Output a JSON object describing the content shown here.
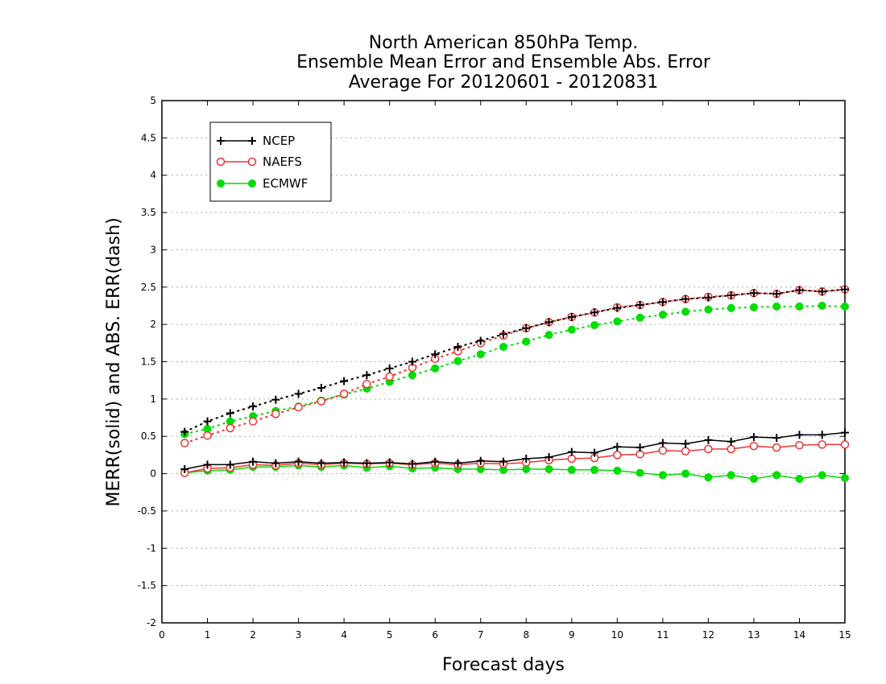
{
  "chart_data": {
    "type": "line",
    "title": [
      "North American 850hPa Temp.",
      "Ensemble Mean Error and Ensemble Abs. Error",
      "Average For 20120601 - 20120831"
    ],
    "xlabel": "Forecast days",
    "ylabel": "MERR(solid) and ABS. ERR(dash)",
    "xlim": [
      0,
      15
    ],
    "ylim": [
      -2,
      5
    ],
    "x_ticks": [
      "0",
      "1",
      "2",
      "3",
      "4",
      "5",
      "6",
      "7",
      "8",
      "9",
      "10",
      "11",
      "12",
      "13",
      "14",
      "15"
    ],
    "y_ticks": [
      "5",
      "4.5",
      "4",
      "3.5",
      "3",
      "2.5",
      "2",
      "1.5",
      "1",
      "0.5",
      "0",
      "-0.5",
      "-1",
      "-1.5",
      "-2"
    ],
    "grid": "horizontal dotted",
    "legend_position": "top-left",
    "x": [
      0.5,
      1,
      1.5,
      2,
      2.5,
      3,
      3.5,
      4,
      4.5,
      5,
      5.5,
      6,
      6.5,
      7,
      7.5,
      8,
      8.5,
      9,
      9.5,
      10,
      10.5,
      11,
      11.5,
      12,
      12.5,
      13,
      13.5,
      14,
      14.5,
      15
    ],
    "series": [
      {
        "name": "NCEP",
        "color": "#000000",
        "marker": "plus",
        "merr": [
          0.06,
          0.12,
          0.12,
          0.16,
          0.14,
          0.16,
          0.14,
          0.15,
          0.14,
          0.15,
          0.13,
          0.16,
          0.14,
          0.17,
          0.16,
          0.2,
          0.22,
          0.29,
          0.28,
          0.36,
          0.35,
          0.41,
          0.4,
          0.45,
          0.43,
          0.49,
          0.48,
          0.52,
          0.52,
          0.55
        ],
        "abs_err": [
          0.56,
          0.7,
          0.81,
          0.9,
          0.99,
          1.07,
          1.15,
          1.24,
          1.32,
          1.41,
          1.5,
          1.6,
          1.7,
          1.78,
          1.87,
          1.95,
          2.03,
          2.1,
          2.16,
          2.22,
          2.26,
          2.3,
          2.34,
          2.36,
          2.39,
          2.42,
          2.41,
          2.46,
          2.44,
          2.47
        ]
      },
      {
        "name": "NAEFS",
        "color": "#ee3333",
        "marker": "open-circle",
        "merr": [
          0.01,
          0.07,
          0.08,
          0.12,
          0.11,
          0.14,
          0.12,
          0.14,
          0.13,
          0.14,
          0.12,
          0.14,
          0.12,
          0.14,
          0.13,
          0.15,
          0.18,
          0.2,
          0.21,
          0.25,
          0.26,
          0.31,
          0.3,
          0.33,
          0.33,
          0.37,
          0.35,
          0.38,
          0.39,
          0.39
        ],
        "abs_err": [
          0.41,
          0.51,
          0.61,
          0.7,
          0.8,
          0.89,
          0.97,
          1.07,
          1.2,
          1.3,
          1.42,
          1.54,
          1.64,
          1.75,
          1.85,
          1.95,
          2.03,
          2.1,
          2.16,
          2.23,
          2.26,
          2.3,
          2.34,
          2.37,
          2.39,
          2.42,
          2.41,
          2.46,
          2.44,
          2.47
        ]
      },
      {
        "name": "ECMWF",
        "color": "#00dd00",
        "marker": "filled-circle",
        "merr": [
          0.01,
          0.04,
          0.05,
          0.09,
          0.09,
          0.11,
          0.09,
          0.11,
          0.08,
          0.1,
          0.07,
          0.08,
          0.06,
          0.06,
          0.05,
          0.06,
          0.06,
          0.05,
          0.05,
          0.04,
          0.01,
          -0.02,
          0.0,
          -0.05,
          -0.02,
          -0.07,
          -0.02,
          -0.07,
          -0.02,
          -0.06
        ],
        "abs_err": [
          0.53,
          0.6,
          0.7,
          0.77,
          0.84,
          0.9,
          0.98,
          1.06,
          1.14,
          1.23,
          1.32,
          1.41,
          1.51,
          1.6,
          1.7,
          1.77,
          1.86,
          1.93,
          1.99,
          2.04,
          2.09,
          2.13,
          2.17,
          2.2,
          2.22,
          2.23,
          2.24,
          2.24,
          2.25,
          2.24
        ]
      }
    ]
  }
}
